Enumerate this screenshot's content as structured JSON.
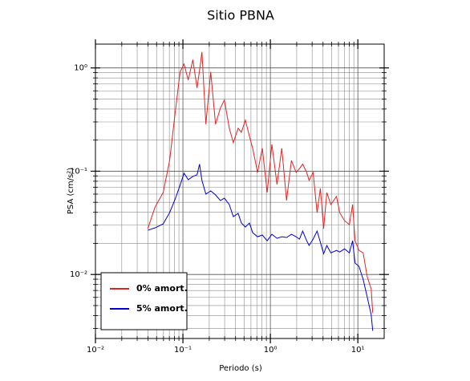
{
  "chart_data": {
    "type": "line",
    "title": "Sitio PBNA",
    "xlabel": "Periodo (s)",
    "ylabel": "PSA (cm/s²)",
    "xscale": "log",
    "yscale": "log",
    "grid": true,
    "legend": "lower left",
    "xlim": [
      0.01,
      20
    ],
    "ylim": [
      0.0024,
      1.7
    ],
    "xticks": [
      {
        "value": 0.01,
        "label": "10⁻²"
      },
      {
        "value": 0.1,
        "label": "10⁻¹"
      },
      {
        "value": 1,
        "label": "10⁰"
      },
      {
        "value": 10,
        "label": "10¹"
      }
    ],
    "yticks": [
      {
        "value": 0.01,
        "label": "10⁻²"
      },
      {
        "value": 0.1,
        "label": "10⁻¹"
      },
      {
        "value": 1,
        "label": "10⁰"
      }
    ],
    "xminor_ticks": [
      0.02,
      0.03,
      0.04,
      0.05,
      0.06,
      0.07,
      0.08,
      0.09,
      0.2,
      0.3,
      0.4,
      0.5,
      0.6,
      0.7,
      0.8,
      0.9,
      2,
      3,
      4,
      5,
      6,
      7,
      8,
      9
    ],
    "yminor_ticks": [
      0.003,
      0.004,
      0.005,
      0.006,
      0.007,
      0.008,
      0.009,
      0.02,
      0.03,
      0.04,
      0.05,
      0.06,
      0.07,
      0.08,
      0.09,
      0.2,
      0.3,
      0.4,
      0.5,
      0.6,
      0.7,
      0.8,
      0.9
    ],
    "x": [
      0.0397,
      0.0481,
      0.0595,
      0.0705,
      0.0817,
      0.0928,
      0.103,
      0.115,
      0.13,
      0.145,
      0.155,
      0.165,
      0.183,
      0.208,
      0.236,
      0.268,
      0.298,
      0.339,
      0.377,
      0.428,
      0.466,
      0.518,
      0.576,
      0.627,
      0.713,
      0.809,
      0.919,
      1.04,
      1.19,
      1.35,
      1.53,
      1.74,
      1.97,
      2.15,
      2.34,
      2.6,
      2.77,
      3.08,
      3.42,
      3.73,
      4.06,
      4.42,
      4.91,
      5.7,
      6.2,
      7.04,
      8.0,
      8.71,
      9.29,
      10.3,
      11.5,
      12.8,
      14.2,
      14.8
    ],
    "series": [
      {
        "name": "0% amort.",
        "color": "#e02424",
        "values": [
          0.0278,
          0.0451,
          0.0622,
          0.127,
          0.373,
          0.914,
          1.09,
          0.764,
          1.2,
          0.639,
          0.948,
          1.43,
          0.285,
          0.914,
          0.285,
          0.408,
          0.489,
          0.261,
          0.189,
          0.261,
          0.238,
          0.312,
          0.218,
          0.167,
          0.0973,
          0.167,
          0.0622,
          0.182,
          0.0744,
          0.167,
          0.052,
          0.127,
          0.0973,
          0.106,
          0.117,
          0.0973,
          0.0814,
          0.0973,
          0.0397,
          0.0681,
          0.0278,
          0.0622,
          0.0475,
          0.0569,
          0.0397,
          0.0332,
          0.0304,
          0.0475,
          0.0212,
          0.0171,
          0.0162,
          0.00948,
          0.00724,
          0.00423
        ]
      },
      {
        "name": "5% amort.",
        "color": "#0000d0",
        "values": [
          0.0268,
          0.0283,
          0.0309,
          0.0397,
          0.0539,
          0.0731,
          0.0957,
          0.0828,
          0.089,
          0.0923,
          0.117,
          0.0814,
          0.06,
          0.0645,
          0.0589,
          0.052,
          0.0548,
          0.0475,
          0.0363,
          0.039,
          0.0315,
          0.0288,
          0.0315,
          0.0254,
          0.0232,
          0.0241,
          0.0212,
          0.0245,
          0.0224,
          0.0232,
          0.0228,
          0.0245,
          0.0232,
          0.022,
          0.0263,
          0.0212,
          0.0191,
          0.022,
          0.0263,
          0.0205,
          0.0159,
          0.0191,
          0.0162,
          0.0171,
          0.0165,
          0.0177,
          0.0162,
          0.0212,
          0.0129,
          0.012,
          0.00898,
          0.00605,
          0.00408,
          0.00285
        ]
      }
    ]
  }
}
